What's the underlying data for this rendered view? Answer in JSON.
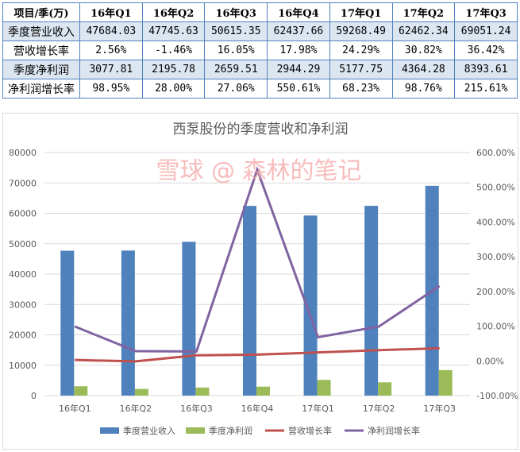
{
  "table": {
    "header": [
      "项目/季(万)",
      "16年Q1",
      "16年Q2",
      "16年Q3",
      "16年Q4",
      "17年Q1",
      "17年Q2",
      "17年Q3"
    ],
    "rows": [
      {
        "label": "季度营业收入",
        "values": [
          "47684.03",
          "47745.63",
          "50615.35",
          "62437.66",
          "59268.49",
          "62462.34",
          "69051.24"
        ]
      },
      {
        "label": "营收增长率",
        "values": [
          "2.56%",
          "-1.46%",
          "16.05%",
          "17.98%",
          "24.29%",
          "30.82%",
          "36.42%"
        ]
      },
      {
        "label": "季度净利润",
        "values": [
          "3077.81",
          "2195.78",
          "2659.51",
          "2944.29",
          "5177.75",
          "4364.28",
          "8393.61"
        ]
      },
      {
        "label": "净利润增长率",
        "values": [
          "98.95%",
          "28.00%",
          "27.06%",
          "550.61%",
          "68.23%",
          "98.76%",
          "215.61%"
        ]
      }
    ]
  },
  "chart_data": {
    "type": "bar+line",
    "title": "西泵股份的季度营收和净利润",
    "watermark": "雪球 @ 森林的笔记",
    "categories": [
      "16年Q1",
      "16年Q2",
      "16年Q3",
      "16年Q4",
      "17年Q1",
      "17年Q2",
      "17年Q3"
    ],
    "y_left": {
      "min": 0,
      "max": 80000,
      "ticks": [
        "0",
        "10000",
        "20000",
        "30000",
        "40000",
        "50000",
        "60000",
        "70000",
        "80000"
      ]
    },
    "y_right": {
      "min": -100,
      "max": 600,
      "ticks": [
        "-100.00%",
        "0.00%",
        "100.00%",
        "200.00%",
        "300.00%",
        "400.00%",
        "500.00%",
        "600.00%"
      ]
    },
    "grid": true,
    "legend": "bottom",
    "series": [
      {
        "name": "季度营业收入",
        "type": "bar",
        "axis": "left",
        "color": "#4f81bd",
        "values": [
          47684.03,
          47745.63,
          50615.35,
          62437.66,
          59268.49,
          62462.34,
          69051.24
        ]
      },
      {
        "name": "季度净利润",
        "type": "bar",
        "axis": "left",
        "color": "#9bbb59",
        "values": [
          3077.81,
          2195.78,
          2659.51,
          2944.29,
          5177.75,
          4364.28,
          8393.61
        ]
      },
      {
        "name": "营收增长率",
        "type": "line",
        "axis": "right",
        "color": "#c0504d",
        "values": [
          2.56,
          -1.46,
          16.05,
          17.98,
          24.29,
          30.82,
          36.42
        ]
      },
      {
        "name": "净利润增长率",
        "type": "line",
        "axis": "right",
        "color": "#8064a2",
        "values": [
          98.95,
          28.0,
          27.06,
          550.61,
          68.23,
          98.76,
          215.61
        ]
      }
    ]
  }
}
